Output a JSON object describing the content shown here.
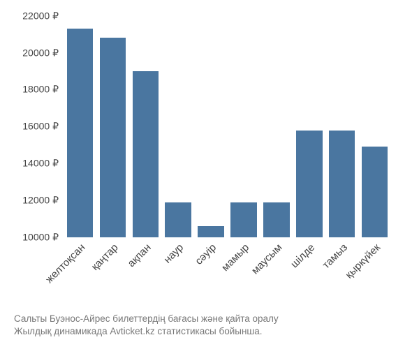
{
  "chart": {
    "type": "bar",
    "ylim": [
      10000,
      22100
    ],
    "y_ticks": [
      10000,
      12000,
      14000,
      16000,
      18000,
      20000,
      22000
    ],
    "y_tick_suffix": " ₽",
    "bar_color": "#4a76a0",
    "bar_width_pct": 80,
    "background_color": "#ffffff",
    "label_color": "#444444",
    "font_size_axis": 14,
    "categories": [
      "желтоқсан",
      "қаңтар",
      "ақпан",
      "наур",
      "сәуір",
      "мамыр",
      "маусым",
      "шілде",
      "тамыз",
      "қыркүйек"
    ],
    "values": [
      21300,
      20800,
      19000,
      11900,
      10600,
      11900,
      11900,
      15800,
      15800,
      14900
    ],
    "x_label_rotation_deg": -45
  },
  "caption": {
    "line1": "Сальты Буэнос-Айрес билеттердің бағасы және қайта оралу",
    "line2": "Жылдық динамикада Avticket.kz статистикасы бойынша.",
    "color": "#777777",
    "font_size": 13.5
  }
}
